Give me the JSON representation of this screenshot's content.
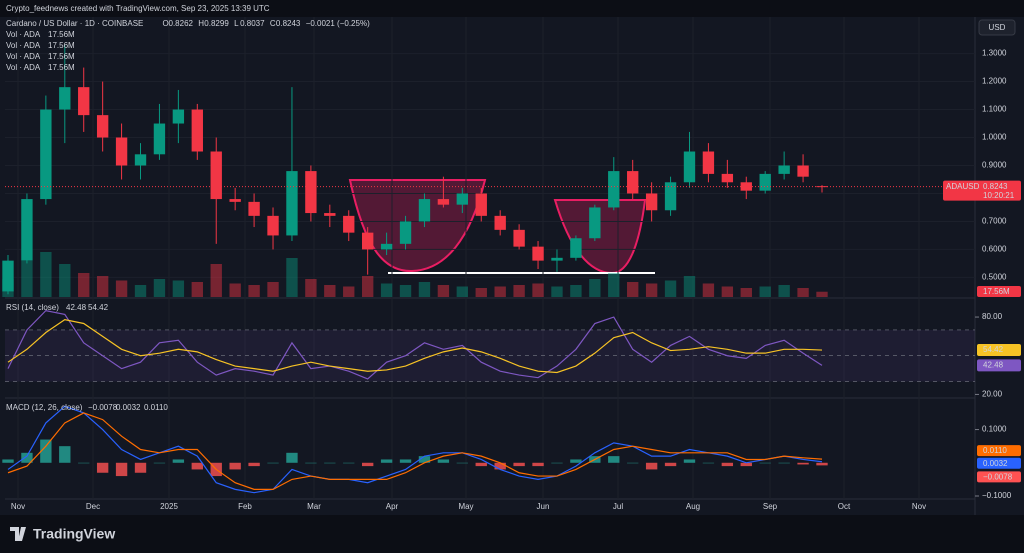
{
  "header": {
    "credit": "Crypto_feednews created with TradingView.com, Sep 23, 2025 13:39 UTC",
    "currency": "USD",
    "brand": "TradingView"
  },
  "chart_data": {
    "type": "candlestick",
    "title": "Cardano / US Dollar · 1D · COINBASE",
    "ohlc_legend": [
      {
        "label": "O",
        "value": "0.8262"
      },
      {
        "label": "H",
        "value": "0.8299"
      },
      {
        "label": "L",
        "value": "0.8037"
      },
      {
        "label": "C",
        "value": "0.8243"
      }
    ],
    "change_label": "−0.0021 (−0.25%)",
    "volume_legend": [
      {
        "label": "Vol · ADA",
        "value": "17.56M"
      },
      {
        "label": "Vol · ADA",
        "value": "17.56M"
      },
      {
        "label": "Vol · ADA",
        "value": "17.56M"
      },
      {
        "label": "Vol · ADA",
        "value": "17.56M"
      }
    ],
    "symbol": "ADAUSD",
    "countdown": "10:20:21",
    "up_color": "#089981",
    "down_color": "#f23645",
    "open": [
      0.45,
      0.56,
      0.78,
      1.1,
      1.18,
      1.08,
      1.0,
      0.9,
      0.94,
      1.05,
      1.1,
      0.95,
      0.78,
      0.77,
      0.72,
      0.65,
      0.88,
      0.73,
      0.72,
      0.66,
      0.6,
      0.62,
      0.7,
      0.78,
      0.76,
      0.8,
      0.72,
      0.67,
      0.61,
      0.56,
      0.57,
      0.64,
      0.75,
      0.88,
      0.8,
      0.74,
      0.84,
      0.95,
      0.87,
      0.84,
      0.81,
      0.87,
      0.9,
      0.8262
    ],
    "high": [
      0.58,
      0.8,
      1.15,
      1.33,
      1.25,
      1.2,
      1.05,
      0.98,
      1.12,
      1.17,
      1.12,
      1.0,
      0.82,
      0.8,
      0.75,
      1.18,
      0.9,
      0.76,
      0.74,
      0.68,
      0.66,
      0.72,
      0.8,
      0.86,
      0.82,
      0.82,
      0.74,
      0.69,
      0.63,
      0.6,
      0.65,
      0.76,
      0.93,
      0.92,
      0.84,
      0.86,
      1.02,
      0.98,
      0.92,
      0.86,
      0.88,
      0.95,
      0.94,
      0.8299
    ],
    "low": [
      0.44,
      0.55,
      0.76,
      0.98,
      1.02,
      0.95,
      0.85,
      0.85,
      0.92,
      0.98,
      0.92,
      0.62,
      0.74,
      0.68,
      0.6,
      0.63,
      0.7,
      0.68,
      0.63,
      0.51,
      0.58,
      0.6,
      0.68,
      0.75,
      0.73,
      0.7,
      0.65,
      0.6,
      0.53,
      0.52,
      0.56,
      0.63,
      0.74,
      0.78,
      0.7,
      0.72,
      0.82,
      0.84,
      0.82,
      0.78,
      0.8,
      0.85,
      0.84,
      0.8037
    ],
    "close": [
      0.56,
      0.78,
      1.1,
      1.18,
      1.08,
      1.0,
      0.9,
      0.94,
      1.05,
      1.1,
      0.95,
      0.78,
      0.77,
      0.72,
      0.65,
      0.88,
      0.73,
      0.72,
      0.66,
      0.6,
      0.62,
      0.7,
      0.78,
      0.76,
      0.8,
      0.72,
      0.67,
      0.61,
      0.56,
      0.57,
      0.64,
      0.75,
      0.88,
      0.8,
      0.74,
      0.84,
      0.95,
      0.87,
      0.84,
      0.81,
      0.87,
      0.9,
      0.86,
      0.8243
    ],
    "volume": [
      60,
      120,
      150,
      110,
      80,
      70,
      55,
      40,
      60,
      55,
      50,
      110,
      45,
      40,
      50,
      130,
      60,
      40,
      35,
      70,
      45,
      40,
      50,
      40,
      35,
      30,
      35,
      40,
      45,
      35,
      40,
      60,
      80,
      50,
      45,
      55,
      70,
      45,
      35,
      30,
      35,
      40,
      30,
      17.56
    ],
    "ylim": [
      0.43,
      1.42
    ],
    "yticks": [
      {
        "value": 1.3,
        "label": "1.3000"
      },
      {
        "value": 1.2,
        "label": "1.2000"
      },
      {
        "value": 1.1,
        "label": "1.1000"
      },
      {
        "value": 1.0,
        "label": "1.0000"
      },
      {
        "value": 0.9,
        "label": "0.9000"
      },
      {
        "value": 0.8,
        "label": "0.8000"
      },
      {
        "value": 0.7,
        "label": "0.7000"
      },
      {
        "value": 0.6,
        "label": "0.6000"
      },
      {
        "value": 0.5,
        "label": "0.5000"
      }
    ],
    "xlabels": [
      "Nov",
      "Dec",
      "2025",
      "Feb",
      "Mar",
      "Apr",
      "May",
      "Jun",
      "Jul",
      "Aug",
      "Sep",
      "Oct",
      "Nov"
    ],
    "rsi": {
      "title": "RSI (14, close)",
      "color": "#7e57c2",
      "ma_color": "#f7c325",
      "values": [
        40,
        70,
        85,
        82,
        60,
        50,
        40,
        45,
        60,
        62,
        45,
        35,
        40,
        38,
        35,
        60,
        40,
        42,
        38,
        32,
        45,
        50,
        60,
        55,
        58,
        45,
        38,
        35,
        33,
        42,
        55,
        75,
        80,
        55,
        45,
        58,
        65,
        55,
        50,
        48,
        58,
        62,
        52,
        42.48
      ],
      "ma": [
        45,
        55,
        68,
        78,
        75,
        65,
        55,
        50,
        52,
        55,
        53,
        47,
        42,
        40,
        38,
        42,
        45,
        42,
        40,
        38,
        39,
        42,
        48,
        53,
        56,
        53,
        48,
        42,
        38,
        37,
        42,
        52,
        64,
        68,
        60,
        54,
        55,
        57,
        55,
        52,
        52,
        55,
        55,
        54.42
      ],
      "ylim": [
        18,
        94
      ],
      "yticks": [
        {
          "value": 80,
          "label": "80.00"
        },
        {
          "value": 20,
          "label": "20.00"
        }
      ]
    },
    "macd": {
      "title": "MACD (12, 26, close)",
      "macd_color": "#2962ff",
      "signal_color": "#ff6d00",
      "labels": [
        "−0.0078",
        "0.0032",
        "0.0110"
      ],
      "histogram": [
        0.01,
        0.03,
        0.07,
        0.05,
        0.0,
        -0.03,
        -0.04,
        -0.03,
        0.0,
        0.01,
        -0.02,
        -0.04,
        -0.02,
        -0.01,
        0.0,
        0.03,
        0.0,
        0.0,
        0.0,
        -0.01,
        0.01,
        0.01,
        0.02,
        0.01,
        0.0,
        -0.01,
        -0.02,
        -0.01,
        -0.01,
        0.0,
        0.01,
        0.02,
        0.02,
        0.0,
        -0.02,
        -0.01,
        0.01,
        0.0,
        -0.01,
        -0.01,
        0.0,
        0.0,
        -0.005,
        -0.0078
      ],
      "macd": [
        -0.02,
        0.02,
        0.12,
        0.17,
        0.15,
        0.1,
        0.04,
        0.01,
        0.03,
        0.05,
        0.02,
        -0.06,
        -0.08,
        -0.09,
        -0.08,
        -0.02,
        -0.04,
        -0.05,
        -0.05,
        -0.06,
        -0.04,
        -0.02,
        0.02,
        0.03,
        0.03,
        0.01,
        -0.02,
        -0.04,
        -0.05,
        -0.04,
        -0.01,
        0.03,
        0.06,
        0.05,
        0.02,
        0.02,
        0.04,
        0.03,
        0.02,
        0.0,
        0.01,
        0.02,
        0.01,
        0.0032
      ],
      "signal": [
        -0.03,
        -0.01,
        0.05,
        0.12,
        0.15,
        0.13,
        0.08,
        0.04,
        0.03,
        0.04,
        0.04,
        -0.02,
        -0.06,
        -0.08,
        -0.08,
        -0.05,
        -0.04,
        -0.05,
        -0.05,
        -0.05,
        -0.05,
        -0.03,
        0.0,
        0.02,
        0.03,
        0.02,
        0.0,
        -0.03,
        -0.04,
        -0.04,
        -0.02,
        0.01,
        0.04,
        0.05,
        0.04,
        0.03,
        0.03,
        0.03,
        0.03,
        0.01,
        0.01,
        0.02,
        0.015,
        0.011
      ],
      "ylim": [
        -0.106,
        0.192
      ],
      "yticks": [
        {
          "value": 0.1,
          "label": "0.1000"
        },
        {
          "value": -0.1,
          "label": "−0.1000"
        }
      ]
    }
  }
}
